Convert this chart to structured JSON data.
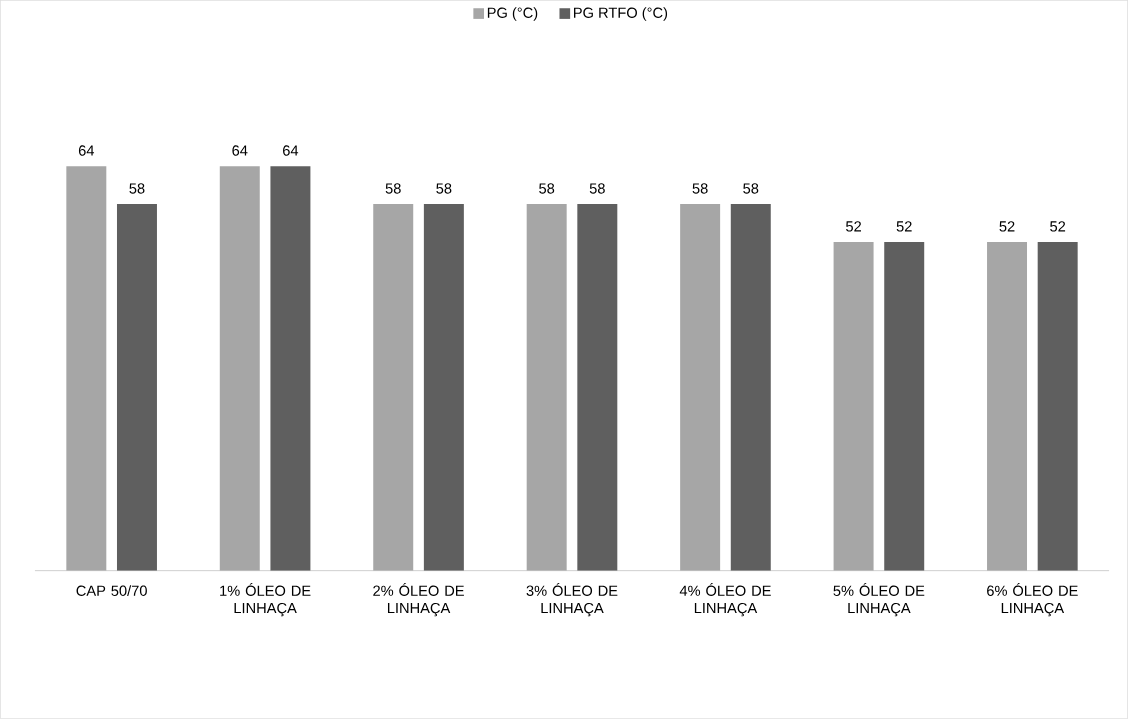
{
  "chart_data": {
    "type": "bar",
    "categories": [
      "CAP 50/70",
      "1% ÓLEO DE LINHAÇA",
      "2% ÓLEO DE LINHAÇA",
      "3% ÓLEO DE LINHAÇA",
      "4% ÓLEO DE LINHAÇA",
      "5% ÓLEO DE LINHAÇA",
      "6% ÓLEO DE LINHAÇA"
    ],
    "series": [
      {
        "name": "PG (°C)",
        "color": "#a6a6a6",
        "values": [
          64,
          64,
          58,
          58,
          58,
          52,
          52
        ]
      },
      {
        "name": "PG RTFO (°C)",
        "color": "#5f5f5f",
        "values": [
          58,
          64,
          58,
          58,
          58,
          52,
          52
        ]
      }
    ],
    "data_labels": true,
    "legend": "top"
  }
}
